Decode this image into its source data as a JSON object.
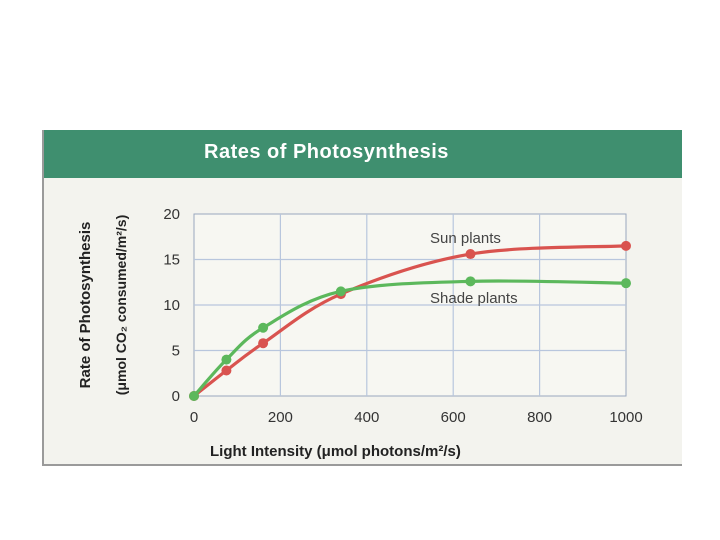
{
  "chart_data": {
    "type": "line",
    "title": "Rates of Photosynthesis",
    "xlabel": "Light Intensity (μmol photons/m²/s)",
    "ylabel_line1": "Rate of Photosynthesis",
    "ylabel_line2": "(μmol CO₂ consumed/m²/s)",
    "xlim": [
      0,
      1000
    ],
    "ylim": [
      0,
      20
    ],
    "xticks": [
      0,
      200,
      400,
      600,
      800,
      1000
    ],
    "yticks": [
      0,
      5,
      10,
      15,
      20
    ],
    "grid": true,
    "series": [
      {
        "name": "Sun plants",
        "color": "#d9534f",
        "x": [
          0,
          75,
          160,
          340,
          640,
          1000
        ],
        "y": [
          0,
          2.8,
          5.8,
          11.2,
          15.6,
          16.5
        ]
      },
      {
        "name": "Shade plants",
        "color": "#5cb85c",
        "x": [
          0,
          75,
          160,
          340,
          640,
          1000
        ],
        "y": [
          0,
          4.0,
          7.5,
          11.5,
          12.6,
          12.4
        ]
      }
    ]
  },
  "colors": {
    "banner": "#3f8f6f",
    "grid": "#b8c6dd"
  }
}
